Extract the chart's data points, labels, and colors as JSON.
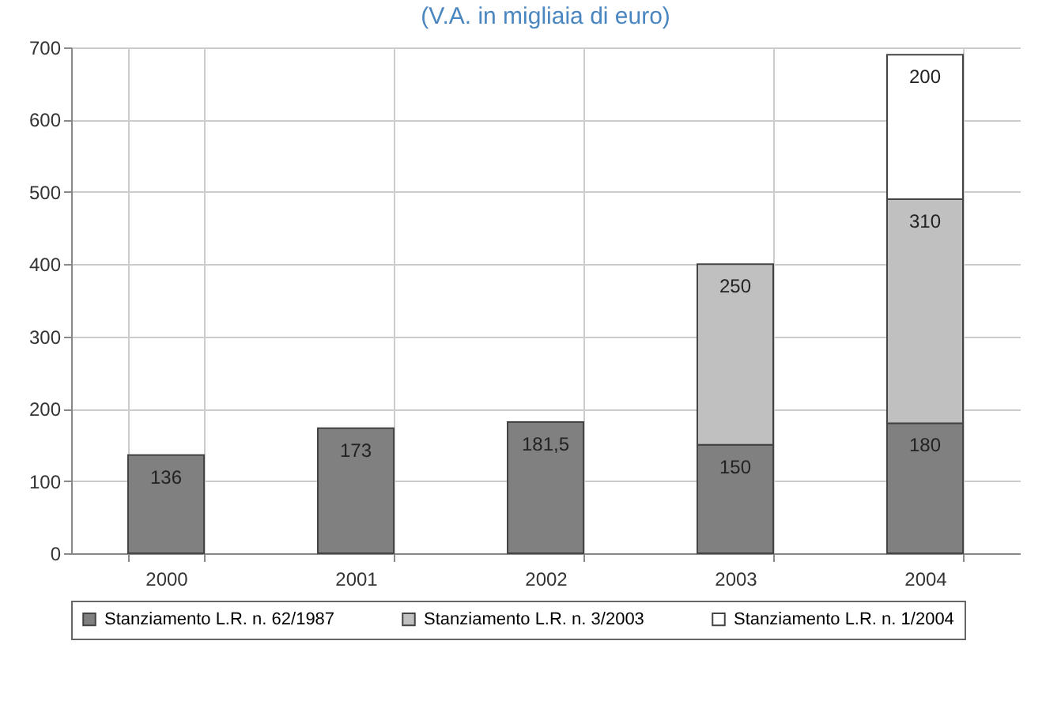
{
  "chart_data": {
    "type": "bar",
    "title": "(V.A. in migliaia di euro)",
    "categories": [
      "2000",
      "2001",
      "2002",
      "2003",
      "2004"
    ],
    "series": [
      {
        "name": "Stanziamento L.R. n. 62/1987",
        "color": "#808080",
        "values": [
          136,
          173,
          181.5,
          150,
          180
        ],
        "value_labels": [
          "136",
          "173",
          "181,5",
          "150",
          "180"
        ]
      },
      {
        "name": "Stanziamento L.R. n. 3/2003",
        "color": "#c0c0c0",
        "values": [
          null,
          null,
          null,
          250,
          310
        ],
        "value_labels": [
          null,
          null,
          null,
          "250",
          "310"
        ]
      },
      {
        "name": "Stanziamento L.R. n. 1/2004",
        "color": "#ffffff",
        "values": [
          null,
          null,
          null,
          null,
          200
        ],
        "value_labels": [
          null,
          null,
          null,
          null,
          "200"
        ]
      }
    ],
    "stacked": true,
    "ylim": [
      0,
      700
    ],
    "yticks": [
      0,
      100,
      200,
      300,
      400,
      500,
      600,
      700
    ],
    "grid": true,
    "legend": "bottom"
  }
}
